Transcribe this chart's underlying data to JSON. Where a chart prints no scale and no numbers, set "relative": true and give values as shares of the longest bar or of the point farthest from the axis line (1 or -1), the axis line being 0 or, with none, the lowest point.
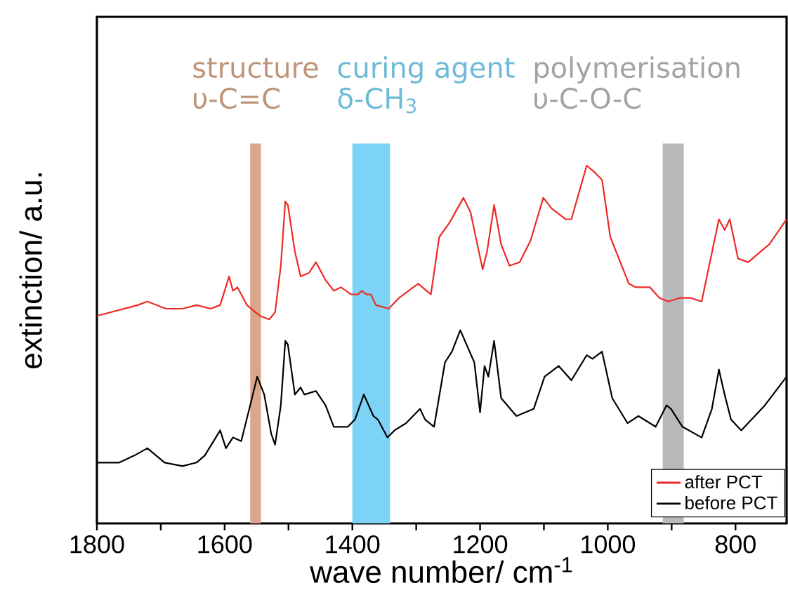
{
  "chart_data": {
    "type": "line",
    "relative": true,
    "xlabel": "wave number/ cm$^{-1}$",
    "ylabel": "extinction/ a.u.",
    "xlim": [
      1800,
      720
    ],
    "xticks": [
      1800,
      {
        "value": 1700,
        "label": null
      },
      1600,
      {
        "value": 1500,
        "label": null
      },
      1400,
      {
        "value": 1300,
        "label": null
      },
      1200,
      {
        "value": 1100,
        "label": null
      },
      1000,
      {
        "value": 900,
        "label": null
      },
      800
    ],
    "legend": "bottom right",
    "bands": [
      {
        "axis": "x",
        "from": 1560,
        "to": 1543,
        "label": "structure",
        "color": "#d9a88a"
      },
      {
        "axis": "x",
        "from": 1400,
        "to": 1341,
        "label": "curing agent",
        "color": "#7dd3f5"
      },
      {
        "axis": "x",
        "from": 914,
        "to": 881,
        "label": "polymerisation",
        "color": "#b8b9bb"
      }
    ],
    "annotations": [
      "υ-C=C",
      "δ-CH$_{3}$",
      "υ-C-O-C"
    ],
    "series": [
      {
        "name": "after PCT",
        "color": "#ee2a24",
        "x": [
          1800,
          1736,
          1721,
          1692,
          1666,
          1644,
          1622,
          1607,
          1593,
          1587,
          1580,
          1574,
          1565,
          1545,
          1530,
          1521,
          1512,
          1505,
          1501,
          1490,
          1481,
          1468,
          1457,
          1442,
          1429,
          1418,
          1402,
          1391,
          1385,
          1378,
          1371,
          1363,
          1343,
          1327,
          1297,
          1277,
          1264,
          1248,
          1226,
          1215,
          1196,
          1189,
          1178,
          1167,
          1154,
          1138,
          1121,
          1101,
          1088,
          1066,
          1057,
          1033,
          1020,
          1009,
          996,
          967,
          956,
          934,
          919,
          905,
          888,
          870,
          853,
          826,
          817,
          809,
          796,
          780,
          747,
          720
        ],
        "values": [
          0.58,
          0.61,
          0.62,
          0.6,
          0.6,
          0.61,
          0.6,
          0.61,
          0.69,
          0.65,
          0.66,
          0.64,
          0.61,
          0.58,
          0.57,
          0.59,
          0.72,
          0.9,
          0.89,
          0.76,
          0.69,
          0.7,
          0.73,
          0.68,
          0.65,
          0.66,
          0.64,
          0.64,
          0.65,
          0.64,
          0.64,
          0.61,
          0.6,
          0.63,
          0.67,
          0.64,
          0.8,
          0.84,
          0.91,
          0.87,
          0.71,
          0.76,
          0.89,
          0.78,
          0.72,
          0.73,
          0.79,
          0.91,
          0.88,
          0.85,
          0.85,
          1.0,
          0.98,
          0.96,
          0.8,
          0.67,
          0.66,
          0.66,
          0.63,
          0.62,
          0.63,
          0.63,
          0.62,
          0.85,
          0.82,
          0.85,
          0.74,
          0.73,
          0.78,
          0.85
        ]
      },
      {
        "name": "before PCT",
        "color": "#000000",
        "x": [
          1800,
          1765,
          1741,
          1721,
          1694,
          1666,
          1644,
          1631,
          1607,
          1598,
          1587,
          1574,
          1560,
          1549,
          1538,
          1527,
          1521,
          1512,
          1505,
          1501,
          1490,
          1481,
          1475,
          1457,
          1442,
          1429,
          1407,
          1396,
          1382,
          1367,
          1360,
          1345,
          1334,
          1316,
          1294,
          1286,
          1272,
          1255,
          1244,
          1231,
          1209,
          1200,
          1193,
          1187,
          1178,
          1167,
          1143,
          1116,
          1099,
          1077,
          1057,
          1033,
          1024,
          1009,
          993,
          969,
          952,
          925,
          908,
          901,
          883,
          853,
          837,
          826,
          817,
          807,
          791,
          754,
          720
        ],
        "values": [
          0.17,
          0.17,
          0.19,
          0.21,
          0.17,
          0.16,
          0.17,
          0.19,
          0.26,
          0.21,
          0.24,
          0.23,
          0.33,
          0.41,
          0.36,
          0.25,
          0.22,
          0.33,
          0.51,
          0.5,
          0.36,
          0.38,
          0.36,
          0.37,
          0.33,
          0.27,
          0.27,
          0.29,
          0.36,
          0.3,
          0.29,
          0.24,
          0.26,
          0.28,
          0.32,
          0.29,
          0.27,
          0.45,
          0.48,
          0.54,
          0.45,
          0.31,
          0.44,
          0.41,
          0.51,
          0.35,
          0.3,
          0.32,
          0.41,
          0.44,
          0.4,
          0.47,
          0.46,
          0.48,
          0.35,
          0.28,
          0.3,
          0.27,
          0.33,
          0.32,
          0.27,
          0.24,
          0.32,
          0.43,
          0.36,
          0.29,
          0.26,
          0.33,
          0.41
        ]
      }
    ]
  }
}
